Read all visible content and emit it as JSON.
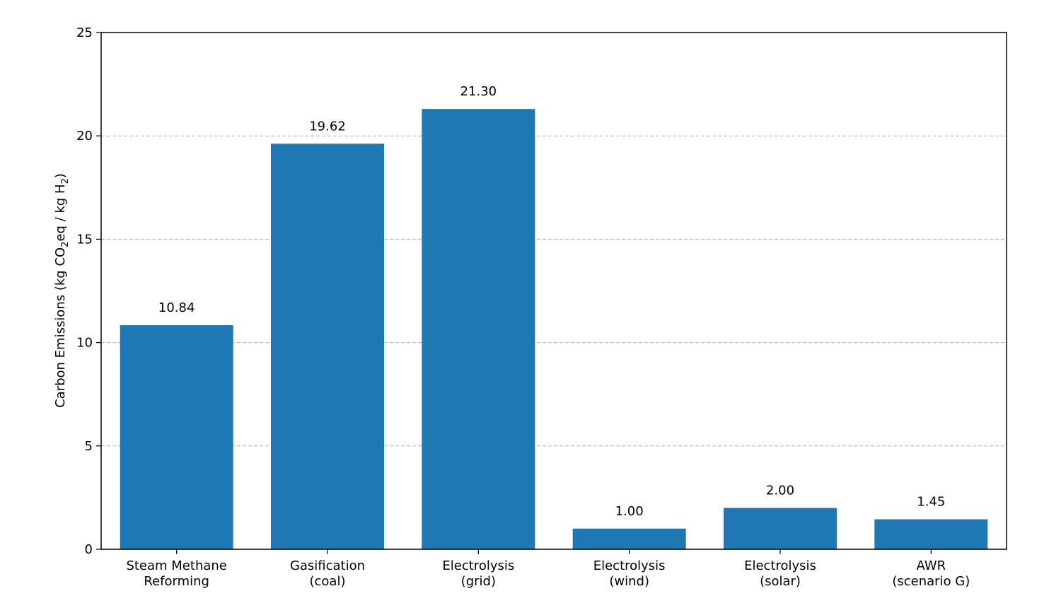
{
  "chart_data": {
    "type": "bar",
    "categories": [
      [
        "Steam Methane",
        "Reforming"
      ],
      [
        "Gasification",
        "(coal)"
      ],
      [
        "Electrolysis",
        "(grid)"
      ],
      [
        "Electrolysis",
        "(wind)"
      ],
      [
        "Electrolysis",
        "(solar)"
      ],
      [
        "AWR",
        "(scenario G)"
      ]
    ],
    "values": [
      10.84,
      19.62,
      21.3,
      1.0,
      2.0,
      1.45
    ],
    "value_labels": [
      "10.84",
      "19.62",
      "21.30",
      "1.00",
      "2.00",
      "1.45"
    ],
    "ylabel": {
      "prefix": "Carbon Emissions (kg CO",
      "sub1": "2",
      "middle": "eq / kg H",
      "sub2": "2",
      "suffix": ")"
    },
    "ylim": [
      0,
      25
    ],
    "yticks": [
      0,
      5,
      10,
      15,
      20,
      25
    ],
    "grid": "y-dashed",
    "bar_color": "#1f77b4",
    "grid_color": "#b0b0b0"
  }
}
